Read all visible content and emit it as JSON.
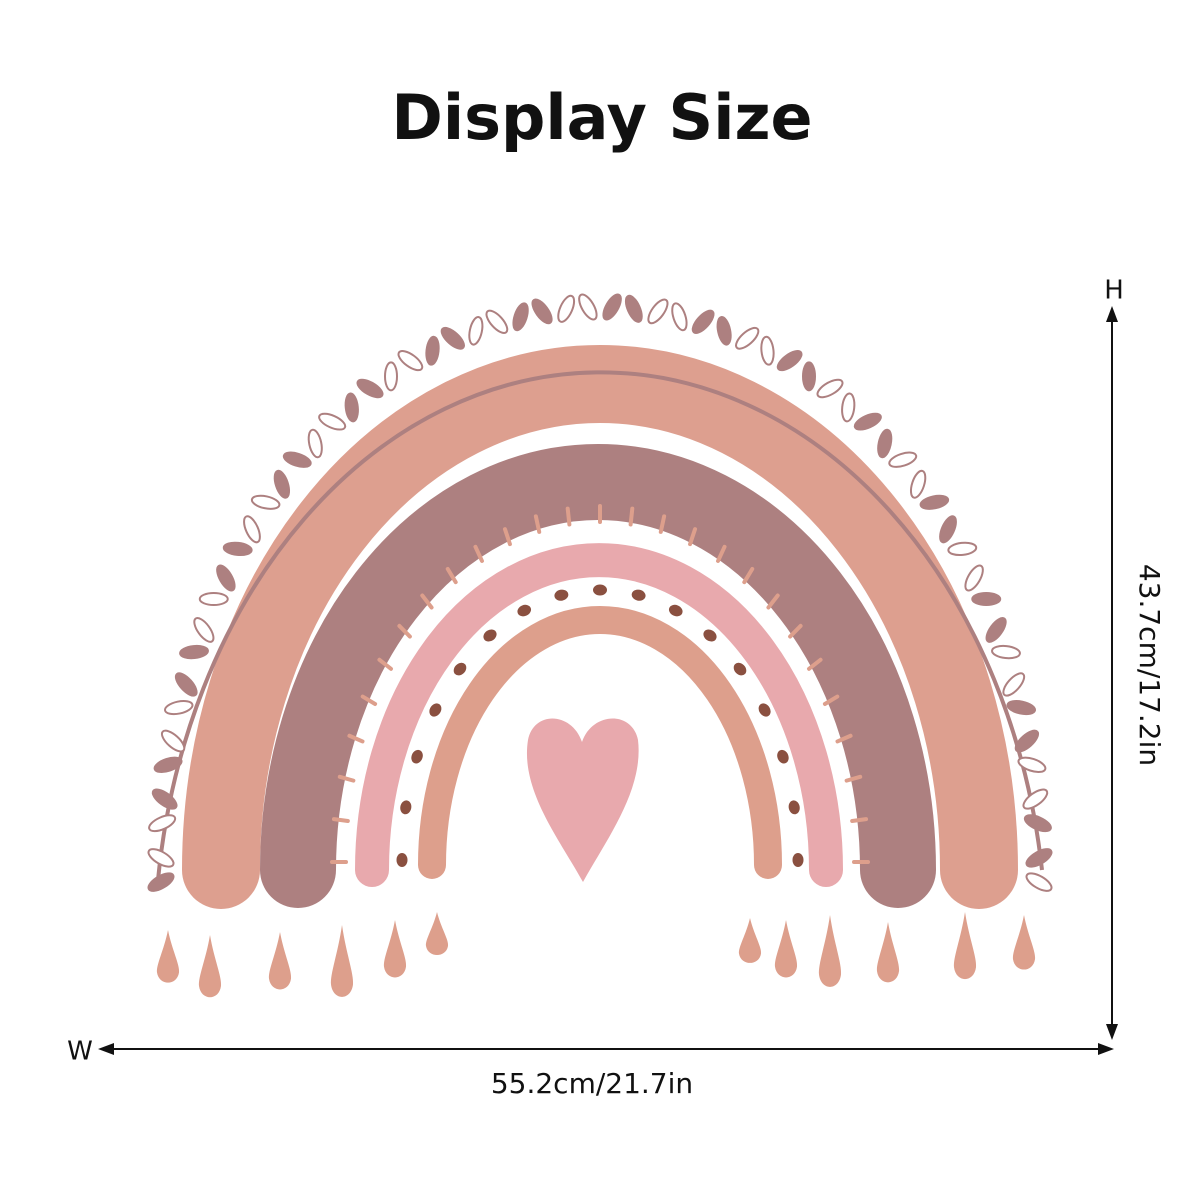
{
  "title": "Display Size",
  "height_label": "H",
  "height": "43.7cm/17.2in",
  "width_label": "W",
  "width": "55.2cm/21.7in"
}
